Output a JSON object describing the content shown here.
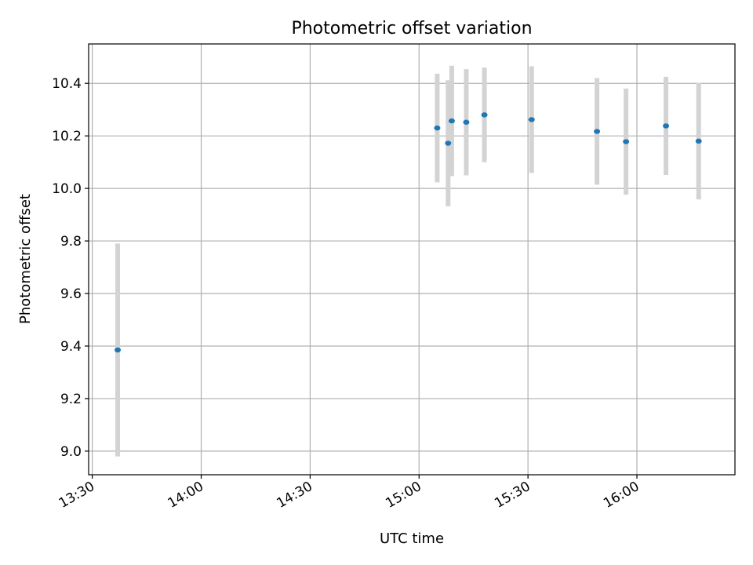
{
  "chart_data": {
    "type": "scatter",
    "title": "Photometric offset variation",
    "xlabel": "UTC time",
    "ylabel": "Photometric offset",
    "x_axis_type": "time",
    "xlim": [
      "13:29",
      "16:27"
    ],
    "ylim": [
      8.91,
      10.55
    ],
    "grid": true,
    "x_ticks": [
      "13:30",
      "14:00",
      "14:30",
      "15:00",
      "15:30",
      "16:00"
    ],
    "y_ticks": [
      9.0,
      9.2,
      9.4,
      9.6,
      9.8,
      10.0,
      10.2,
      10.4
    ],
    "y_tick_labels": [
      "9.0",
      "9.2",
      "9.4",
      "9.6",
      "9.8",
      "10.0",
      "10.2",
      "10.4"
    ],
    "point_color": "#1f77b4",
    "errorbar_color": "#d3d3d3",
    "points": [
      {
        "x": "13:37",
        "y": 9.385,
        "err": 0.405
      },
      {
        "x": "15:05",
        "y": 10.23,
        "err": 0.207
      },
      {
        "x": "15:08",
        "y": 10.172,
        "err": 0.24
      },
      {
        "x": "15:09",
        "y": 10.257,
        "err": 0.21
      },
      {
        "x": "15:13",
        "y": 10.252,
        "err": 0.202
      },
      {
        "x": "15:18",
        "y": 10.28,
        "err": 0.18
      },
      {
        "x": "15:31",
        "y": 10.262,
        "err": 0.203
      },
      {
        "x": "15:49",
        "y": 10.217,
        "err": 0.203
      },
      {
        "x": "15:57",
        "y": 10.178,
        "err": 0.202
      },
      {
        "x": "16:08",
        "y": 10.238,
        "err": 0.187
      },
      {
        "x": "16:17",
        "y": 10.18,
        "err": 0.222
      }
    ]
  }
}
